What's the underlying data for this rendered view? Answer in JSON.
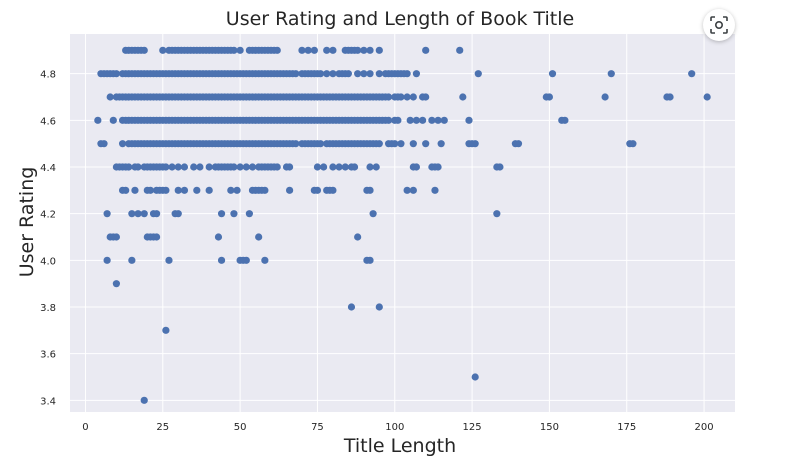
{
  "chart_data": {
    "type": "scatter",
    "title": "User Rating and Length of Book Title",
    "xlabel": "Title Length",
    "ylabel": "User Rating",
    "xlim": [
      -5,
      210
    ],
    "ylim": [
      3.35,
      4.97
    ],
    "xticks": [
      0,
      25,
      50,
      75,
      100,
      125,
      150,
      175,
      200
    ],
    "yticks": [
      3.4,
      3.6,
      3.8,
      4.0,
      4.2,
      4.4,
      4.6,
      4.8
    ],
    "xtick_labels": [
      "0",
      "25",
      "50",
      "75",
      "100",
      "125",
      "150",
      "175",
      "200"
    ],
    "ytick_labels": [
      "3.4",
      "3.6",
      "3.8",
      "4.0",
      "4.2",
      "4.4",
      "4.6",
      "4.8"
    ],
    "grid": true,
    "legend": "none",
    "colors": {
      "point": "#4c72b0",
      "plot_bg": "#eaeaf2",
      "grid": "#ffffff",
      "text": "#262626"
    },
    "series": [
      {
        "x": [
          13,
          14,
          15,
          16,
          17,
          18,
          19,
          25,
          27,
          28,
          29,
          30,
          31,
          32,
          33,
          34,
          35,
          36,
          37,
          38,
          39,
          40,
          41,
          42,
          43,
          44,
          45,
          46,
          47,
          48,
          50,
          53,
          54,
          55,
          56,
          57,
          58,
          59,
          60,
          61,
          62,
          70,
          72,
          74,
          78,
          80,
          84,
          85,
          86,
          87,
          88,
          90,
          92,
          95,
          110,
          121,
          5,
          6,
          7,
          8,
          9,
          10,
          12,
          13,
          14,
          15,
          16,
          17,
          18,
          19,
          20,
          21,
          22,
          23,
          24,
          25,
          26,
          27,
          28,
          29,
          30,
          31,
          32,
          33,
          34,
          35,
          36,
          37,
          38,
          39,
          40,
          41,
          42,
          43,
          44,
          45,
          46,
          47,
          48,
          49,
          50,
          51,
          52,
          53,
          54,
          55,
          56,
          57,
          58,
          59,
          60,
          61,
          62,
          63,
          64,
          65,
          66,
          67,
          68,
          70,
          71,
          72,
          73,
          74,
          75,
          76,
          78,
          80,
          82,
          83,
          84,
          85,
          88,
          90,
          92,
          95,
          97,
          98,
          99,
          100,
          101,
          102,
          103,
          104,
          107,
          127,
          151,
          170,
          196,
          8,
          10,
          11,
          12,
          13,
          14,
          15,
          16,
          17,
          18,
          19,
          20,
          21,
          22,
          23,
          24,
          25,
          26,
          27,
          28,
          29,
          30,
          31,
          32,
          33,
          34,
          35,
          36,
          37,
          38,
          39,
          40,
          41,
          42,
          43,
          44,
          45,
          46,
          47,
          48,
          49,
          50,
          51,
          52,
          53,
          54,
          55,
          56,
          57,
          58,
          59,
          60,
          61,
          62,
          63,
          64,
          65,
          66,
          67,
          68,
          69,
          70,
          71,
          72,
          73,
          74,
          75,
          76,
          77,
          78,
          79,
          80,
          81,
          82,
          83,
          84,
          85,
          86,
          87,
          88,
          89,
          90,
          91,
          92,
          93,
          94,
          95,
          96,
          97,
          98,
          100,
          101,
          102,
          104,
          106,
          109,
          110,
          122,
          149,
          150,
          168,
          188,
          189,
          201,
          4,
          9,
          12,
          13,
          14,
          15,
          16,
          17,
          18,
          19,
          20,
          21,
          22,
          23,
          24,
          25,
          26,
          27,
          28,
          29,
          30,
          31,
          32,
          33,
          34,
          35,
          36,
          37,
          38,
          39,
          40,
          41,
          42,
          43,
          44,
          45,
          46,
          47,
          48,
          49,
          50,
          51,
          52,
          53,
          54,
          55,
          56,
          57,
          58,
          59,
          60,
          61,
          62,
          63,
          64,
          65,
          66,
          67,
          68,
          69,
          70,
          71,
          72,
          73,
          74,
          75,
          76,
          77,
          78,
          79,
          80,
          81,
          82,
          83,
          84,
          85,
          86,
          87,
          88,
          89,
          90,
          91,
          92,
          93,
          94,
          95,
          96,
          97,
          98,
          100,
          101,
          105,
          107,
          109,
          112,
          114,
          116,
          124,
          154,
          155,
          5,
          6,
          12,
          14,
          15,
          16,
          17,
          18,
          19,
          20,
          21,
          22,
          23,
          24,
          25,
          26,
          27,
          28,
          29,
          30,
          31,
          32,
          33,
          34,
          35,
          36,
          37,
          38,
          39,
          40,
          41,
          42,
          43,
          44,
          45,
          46,
          47,
          48,
          49,
          50,
          51,
          52,
          53,
          54,
          55,
          56,
          57,
          58,
          59,
          60,
          61,
          62,
          63,
          64,
          65,
          66,
          67,
          68,
          70,
          71,
          72,
          73,
          74,
          75,
          76,
          78,
          79,
          80,
          81,
          82,
          83,
          84,
          85,
          86,
          87,
          88,
          89,
          90,
          91,
          92,
          93,
          94,
          95,
          98,
          99,
          100,
          102,
          106,
          110,
          115,
          124,
          125,
          126,
          139,
          140,
          176,
          177,
          10,
          11,
          12,
          13,
          14,
          16,
          17,
          19,
          20,
          21,
          22,
          23,
          24,
          25,
          26,
          28,
          30,
          32,
          35,
          37,
          40,
          42,
          43,
          44,
          45,
          46,
          47,
          48,
          50,
          52,
          54,
          56,
          57,
          58,
          59,
          60,
          61,
          62,
          65,
          66,
          75,
          77,
          80,
          82,
          84,
          86,
          87,
          92,
          94,
          106,
          107,
          112,
          113,
          114,
          133,
          134,
          12,
          13,
          16,
          20,
          21,
          23,
          24,
          25,
          26,
          30,
          32,
          36,
          40,
          47,
          49,
          54,
          55,
          56,
          57,
          58,
          66,
          74,
          75,
          78,
          79,
          80,
          91,
          92,
          104,
          106,
          113,
          7,
          15,
          17,
          19,
          22,
          23,
          29,
          30,
          44,
          48,
          53,
          93,
          133,
          8,
          9,
          10,
          20,
          21,
          22,
          23,
          43,
          56,
          88,
          7,
          15,
          27,
          44,
          50,
          51,
          52,
          58,
          91,
          92,
          10,
          86,
          95,
          26,
          126,
          19
        ],
        "y": [
          4.9,
          4.9,
          4.9,
          4.9,
          4.9,
          4.9,
          4.9,
          4.9,
          4.9,
          4.9,
          4.9,
          4.9,
          4.9,
          4.9,
          4.9,
          4.9,
          4.9,
          4.9,
          4.9,
          4.9,
          4.9,
          4.9,
          4.9,
          4.9,
          4.9,
          4.9,
          4.9,
          4.9,
          4.9,
          4.9,
          4.9,
          4.9,
          4.9,
          4.9,
          4.9,
          4.9,
          4.9,
          4.9,
          4.9,
          4.9,
          4.9,
          4.9,
          4.9,
          4.9,
          4.9,
          4.9,
          4.9,
          4.9,
          4.9,
          4.9,
          4.9,
          4.9,
          4.9,
          4.9,
          4.9,
          4.9,
          4.8,
          4.8,
          4.8,
          4.8,
          4.8,
          4.8,
          4.8,
          4.8,
          4.8,
          4.8,
          4.8,
          4.8,
          4.8,
          4.8,
          4.8,
          4.8,
          4.8,
          4.8,
          4.8,
          4.8,
          4.8,
          4.8,
          4.8,
          4.8,
          4.8,
          4.8,
          4.8,
          4.8,
          4.8,
          4.8,
          4.8,
          4.8,
          4.8,
          4.8,
          4.8,
          4.8,
          4.8,
          4.8,
          4.8,
          4.8,
          4.8,
          4.8,
          4.8,
          4.8,
          4.8,
          4.8,
          4.8,
          4.8,
          4.8,
          4.8,
          4.8,
          4.8,
          4.8,
          4.8,
          4.8,
          4.8,
          4.8,
          4.8,
          4.8,
          4.8,
          4.8,
          4.8,
          4.8,
          4.8,
          4.8,
          4.8,
          4.8,
          4.8,
          4.8,
          4.8,
          4.8,
          4.8,
          4.8,
          4.8,
          4.8,
          4.8,
          4.8,
          4.8,
          4.8,
          4.8,
          4.8,
          4.8,
          4.8,
          4.8,
          4.8,
          4.8,
          4.8,
          4.8,
          4.8,
          4.8,
          4.8,
          4.8,
          4.8,
          4.7,
          4.7,
          4.7,
          4.7,
          4.7,
          4.7,
          4.7,
          4.7,
          4.7,
          4.7,
          4.7,
          4.7,
          4.7,
          4.7,
          4.7,
          4.7,
          4.7,
          4.7,
          4.7,
          4.7,
          4.7,
          4.7,
          4.7,
          4.7,
          4.7,
          4.7,
          4.7,
          4.7,
          4.7,
          4.7,
          4.7,
          4.7,
          4.7,
          4.7,
          4.7,
          4.7,
          4.7,
          4.7,
          4.7,
          4.7,
          4.7,
          4.7,
          4.7,
          4.7,
          4.7,
          4.7,
          4.7,
          4.7,
          4.7,
          4.7,
          4.7,
          4.7,
          4.7,
          4.7,
          4.7,
          4.7,
          4.7,
          4.7,
          4.7,
          4.7,
          4.7,
          4.7,
          4.7,
          4.7,
          4.7,
          4.7,
          4.7,
          4.7,
          4.7,
          4.7,
          4.7,
          4.7,
          4.7,
          4.7,
          4.7,
          4.7,
          4.7,
          4.7,
          4.7,
          4.7,
          4.7,
          4.7,
          4.7,
          4.7,
          4.7,
          4.7,
          4.7,
          4.7,
          4.7,
          4.7,
          4.7,
          4.7,
          4.7,
          4.7,
          4.7,
          4.7,
          4.7,
          4.7,
          4.7,
          4.7,
          4.7,
          4.7,
          4.7,
          4.7,
          4.6,
          4.6,
          4.6,
          4.6,
          4.6,
          4.6,
          4.6,
          4.6,
          4.6,
          4.6,
          4.6,
          4.6,
          4.6,
          4.6,
          4.6,
          4.6,
          4.6,
          4.6,
          4.6,
          4.6,
          4.6,
          4.6,
          4.6,
          4.6,
          4.6,
          4.6,
          4.6,
          4.6,
          4.6,
          4.6,
          4.6,
          4.6,
          4.6,
          4.6,
          4.6,
          4.6,
          4.6,
          4.6,
          4.6,
          4.6,
          4.6,
          4.6,
          4.6,
          4.6,
          4.6,
          4.6,
          4.6,
          4.6,
          4.6,
          4.6,
          4.6,
          4.6,
          4.6,
          4.6,
          4.6,
          4.6,
          4.6,
          4.6,
          4.6,
          4.6,
          4.6,
          4.6,
          4.6,
          4.6,
          4.6,
          4.6,
          4.6,
          4.6,
          4.6,
          4.6,
          4.6,
          4.6,
          4.6,
          4.6,
          4.6,
          4.6,
          4.6,
          4.6,
          4.6,
          4.6,
          4.6,
          4.6,
          4.6,
          4.6,
          4.6,
          4.6,
          4.6,
          4.6,
          4.6,
          4.6,
          4.6,
          4.6,
          4.6,
          4.6,
          4.6,
          4.6,
          4.6,
          4.6,
          4.6,
          4.6,
          4.5,
          4.5,
          4.5,
          4.5,
          4.5,
          4.5,
          4.5,
          4.5,
          4.5,
          4.5,
          4.5,
          4.5,
          4.5,
          4.5,
          4.5,
          4.5,
          4.5,
          4.5,
          4.5,
          4.5,
          4.5,
          4.5,
          4.5,
          4.5,
          4.5,
          4.5,
          4.5,
          4.5,
          4.5,
          4.5,
          4.5,
          4.5,
          4.5,
          4.5,
          4.5,
          4.5,
          4.5,
          4.5,
          4.5,
          4.5,
          4.5,
          4.5,
          4.5,
          4.5,
          4.5,
          4.5,
          4.5,
          4.5,
          4.5,
          4.5,
          4.5,
          4.5,
          4.5,
          4.5,
          4.5,
          4.5,
          4.5,
          4.5,
          4.5,
          4.5,
          4.5,
          4.5,
          4.5,
          4.5,
          4.5,
          4.5,
          4.5,
          4.5,
          4.5,
          4.5,
          4.5,
          4.5,
          4.5,
          4.5,
          4.5,
          4.5,
          4.5,
          4.5,
          4.5,
          4.5,
          4.5,
          4.5,
          4.5,
          4.5,
          4.5,
          4.5,
          4.5,
          4.5,
          4.5,
          4.5,
          4.5,
          4.5,
          4.5,
          4.5,
          4.5,
          4.5,
          4.5,
          4.4,
          4.4,
          4.4,
          4.4,
          4.4,
          4.4,
          4.4,
          4.4,
          4.4,
          4.4,
          4.4,
          4.4,
          4.4,
          4.4,
          4.4,
          4.4,
          4.4,
          4.4,
          4.4,
          4.4,
          4.4,
          4.4,
          4.4,
          4.4,
          4.4,
          4.4,
          4.4,
          4.4,
          4.4,
          4.4,
          4.4,
          4.4,
          4.4,
          4.4,
          4.4,
          4.4,
          4.4,
          4.4,
          4.4,
          4.4,
          4.4,
          4.4,
          4.4,
          4.4,
          4.4,
          4.4,
          4.4,
          4.4,
          4.4,
          4.4,
          4.4,
          4.4,
          4.4,
          4.4,
          4.4,
          4.4,
          4.3,
          4.3,
          4.3,
          4.3,
          4.3,
          4.3,
          4.3,
          4.3,
          4.3,
          4.3,
          4.3,
          4.3,
          4.3,
          4.3,
          4.3,
          4.3,
          4.3,
          4.3,
          4.3,
          4.3,
          4.3,
          4.3,
          4.3,
          4.3,
          4.3,
          4.3,
          4.3,
          4.3,
          4.3,
          4.3,
          4.3,
          4.2,
          4.2,
          4.2,
          4.2,
          4.2,
          4.2,
          4.2,
          4.2,
          4.2,
          4.2,
          4.2,
          4.2,
          4.2,
          4.1,
          4.1,
          4.1,
          4.1,
          4.1,
          4.1,
          4.1,
          4.1,
          4.1,
          4.1,
          4.0,
          4.0,
          4.0,
          4.0,
          4.0,
          4.0,
          4.0,
          4.0,
          4.0,
          4.0,
          3.9,
          3.8,
          3.8,
          3.7,
          3.5,
          3.4
        ]
      }
    ]
  },
  "ui": {
    "lens_icon": "lens-icon"
  }
}
